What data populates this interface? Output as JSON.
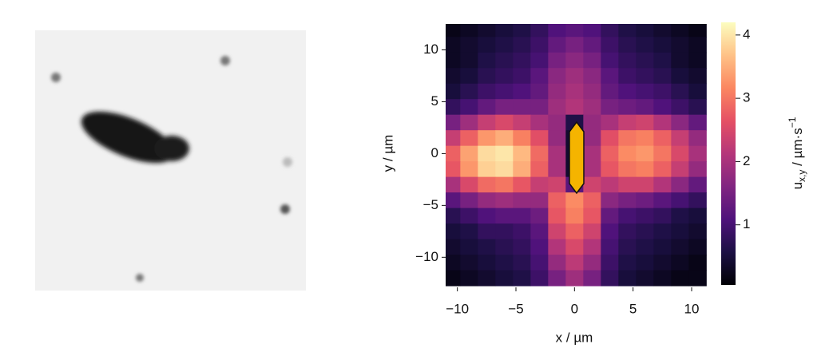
{
  "chart_data": {
    "type": "heatmap",
    "x_label": "x / µm",
    "y_label": "y / µm",
    "colorbar_label": [
      "u",
      "x,y",
      " / µm·s",
      "−1"
    ],
    "colormap": "magma",
    "xlim": [
      -11.0,
      11.5
    ],
    "ylim": [
      -12.9,
      12.5
    ],
    "clim": [
      0.05,
      4.2
    ],
    "xticks": [
      {
        "value": -10,
        "label": "−10"
      },
      {
        "value": -5,
        "label": "−5"
      },
      0,
      5,
      10
    ],
    "yticks": [
      {
        "value": -10,
        "label": "−10"
      },
      {
        "value": -5,
        "label": "−5"
      },
      0,
      5,
      10
    ],
    "cticks": [
      1,
      2,
      3,
      4
    ],
    "x": [
      -10.5,
      -9,
      -7.5,
      -6,
      -4.5,
      -3,
      -1.5,
      0,
      1.5,
      3,
      4.5,
      6,
      7.5,
      9,
      10.5
    ],
    "y": [
      12,
      10.5,
      9,
      7.5,
      6,
      4.5,
      3,
      1.5,
      0,
      -1.5,
      -3,
      -4.5,
      -6,
      -7.5,
      -9,
      -10.5,
      -12
    ],
    "z": [
      [
        0.2,
        0.3,
        0.4,
        0.5,
        0.6,
        0.8,
        1.1,
        1.2,
        1.1,
        0.8,
        0.6,
        0.5,
        0.4,
        0.3,
        0.2
      ],
      [
        0.3,
        0.4,
        0.5,
        0.6,
        0.7,
        0.9,
        1.3,
        1.5,
        1.3,
        0.9,
        0.7,
        0.6,
        0.5,
        0.4,
        0.3
      ],
      [
        0.3,
        0.4,
        0.6,
        0.7,
        0.8,
        1.0,
        1.5,
        1.7,
        1.5,
        1.0,
        0.8,
        0.7,
        0.6,
        0.4,
        0.3
      ],
      [
        0.4,
        0.5,
        0.7,
        0.8,
        0.9,
        1.2,
        1.7,
        1.9,
        1.7,
        1.2,
        0.9,
        0.8,
        0.7,
        0.5,
        0.4
      ],
      [
        0.5,
        0.7,
        0.9,
        1.0,
        1.1,
        1.3,
        1.8,
        2.0,
        1.8,
        1.3,
        1.1,
        1.0,
        0.9,
        0.7,
        0.5
      ],
      [
        0.8,
        1.0,
        1.3,
        1.5,
        1.5,
        1.5,
        1.9,
        2.1,
        1.9,
        1.5,
        1.4,
        1.3,
        1.1,
        0.9,
        0.7
      ],
      [
        1.5,
        1.9,
        2.3,
        2.5,
        2.3,
        2.0,
        1.8,
        0.6,
        1.8,
        2.0,
        2.3,
        2.4,
        2.1,
        1.7,
        1.3
      ],
      [
        2.3,
        2.8,
        3.3,
        3.5,
        3.1,
        2.6,
        1.8,
        0.4,
        1.8,
        2.6,
        3.0,
        3.1,
        2.8,
        2.3,
        1.8
      ],
      [
        2.8,
        3.4,
        3.9,
        4.0,
        3.6,
        2.9,
        2.0,
        0.4,
        2.0,
        2.8,
        3.2,
        3.3,
        3.0,
        2.5,
        2.0
      ],
      [
        2.7,
        3.3,
        3.8,
        3.9,
        3.5,
        2.8,
        2.0,
        0.4,
        2.0,
        2.7,
        3.0,
        3.1,
        2.8,
        2.3,
        1.8
      ],
      [
        2.0,
        2.5,
        2.9,
        3.0,
        2.7,
        2.3,
        2.4,
        1.2,
        2.4,
        2.2,
        2.4,
        2.4,
        2.1,
        1.7,
        1.3
      ],
      [
        1.2,
        1.5,
        1.8,
        1.9,
        1.8,
        1.8,
        2.8,
        3.2,
        2.8,
        1.7,
        1.5,
        1.4,
        1.2,
        1.0,
        0.8
      ],
      [
        0.7,
        0.9,
        1.1,
        1.2,
        1.2,
        1.4,
        2.7,
        3.1,
        2.7,
        1.3,
        1.0,
        0.9,
        0.8,
        0.6,
        0.5
      ],
      [
        0.5,
        0.6,
        0.8,
        0.8,
        0.9,
        1.2,
        2.4,
        2.8,
        2.4,
        1.1,
        0.8,
        0.7,
        0.6,
        0.5,
        0.4
      ],
      [
        0.4,
        0.5,
        0.6,
        0.7,
        0.8,
        1.1,
        2.1,
        2.5,
        2.1,
        1.0,
        0.7,
        0.6,
        0.5,
        0.4,
        0.3
      ],
      [
        0.3,
        0.4,
        0.5,
        0.6,
        0.7,
        1.0,
        1.8,
        2.2,
        1.8,
        0.9,
        0.6,
        0.5,
        0.4,
        0.3,
        0.2
      ],
      [
        0.2,
        0.3,
        0.4,
        0.5,
        0.6,
        0.9,
        1.5,
        1.9,
        1.5,
        0.8,
        0.5,
        0.4,
        0.3,
        0.2,
        0.2
      ]
    ]
  }
}
